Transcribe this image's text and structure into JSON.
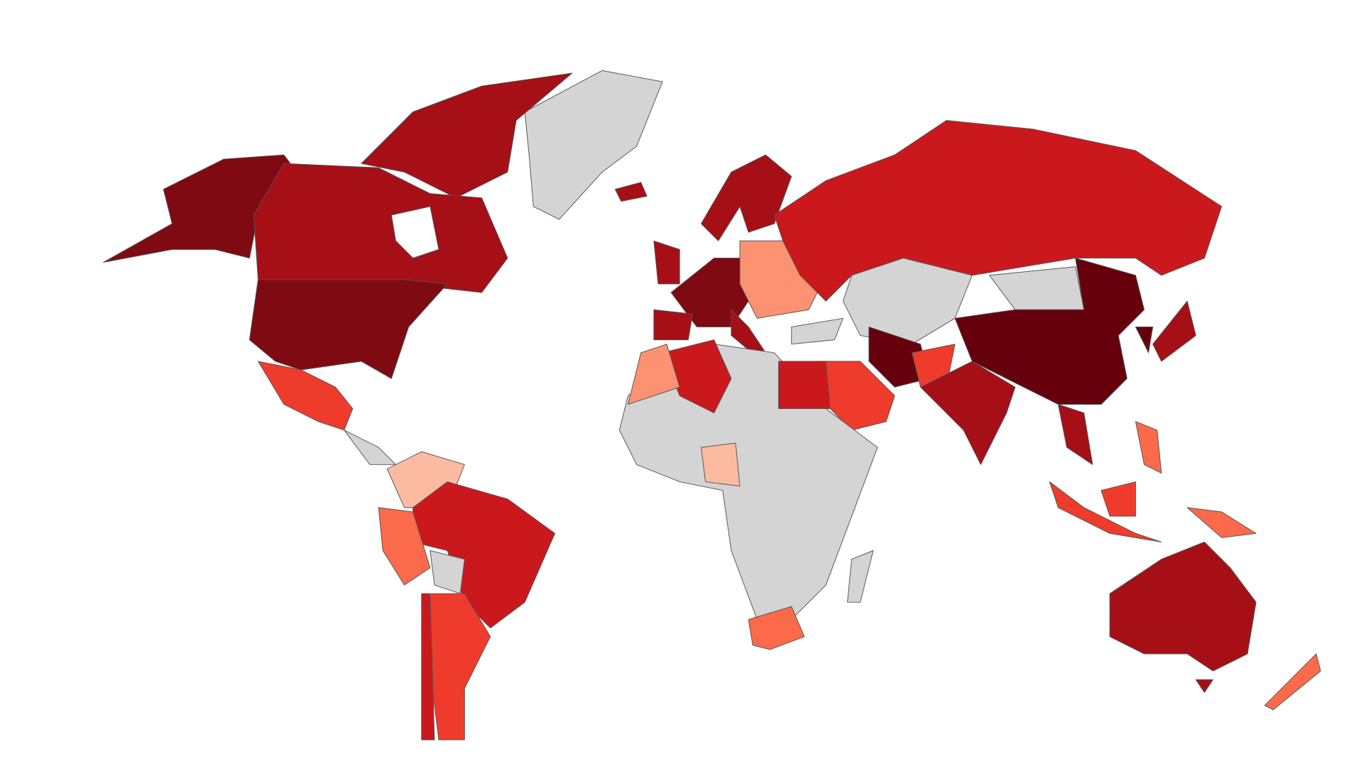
{
  "map": {
    "palette": [
      "#67000d",
      "#7f0a12",
      "#a50f15",
      "#cb181d",
      "#ef3b2c",
      "#fb6a4a",
      "#fc9272",
      "#fcbba1",
      "#d4d4d4"
    ]
  }
}
